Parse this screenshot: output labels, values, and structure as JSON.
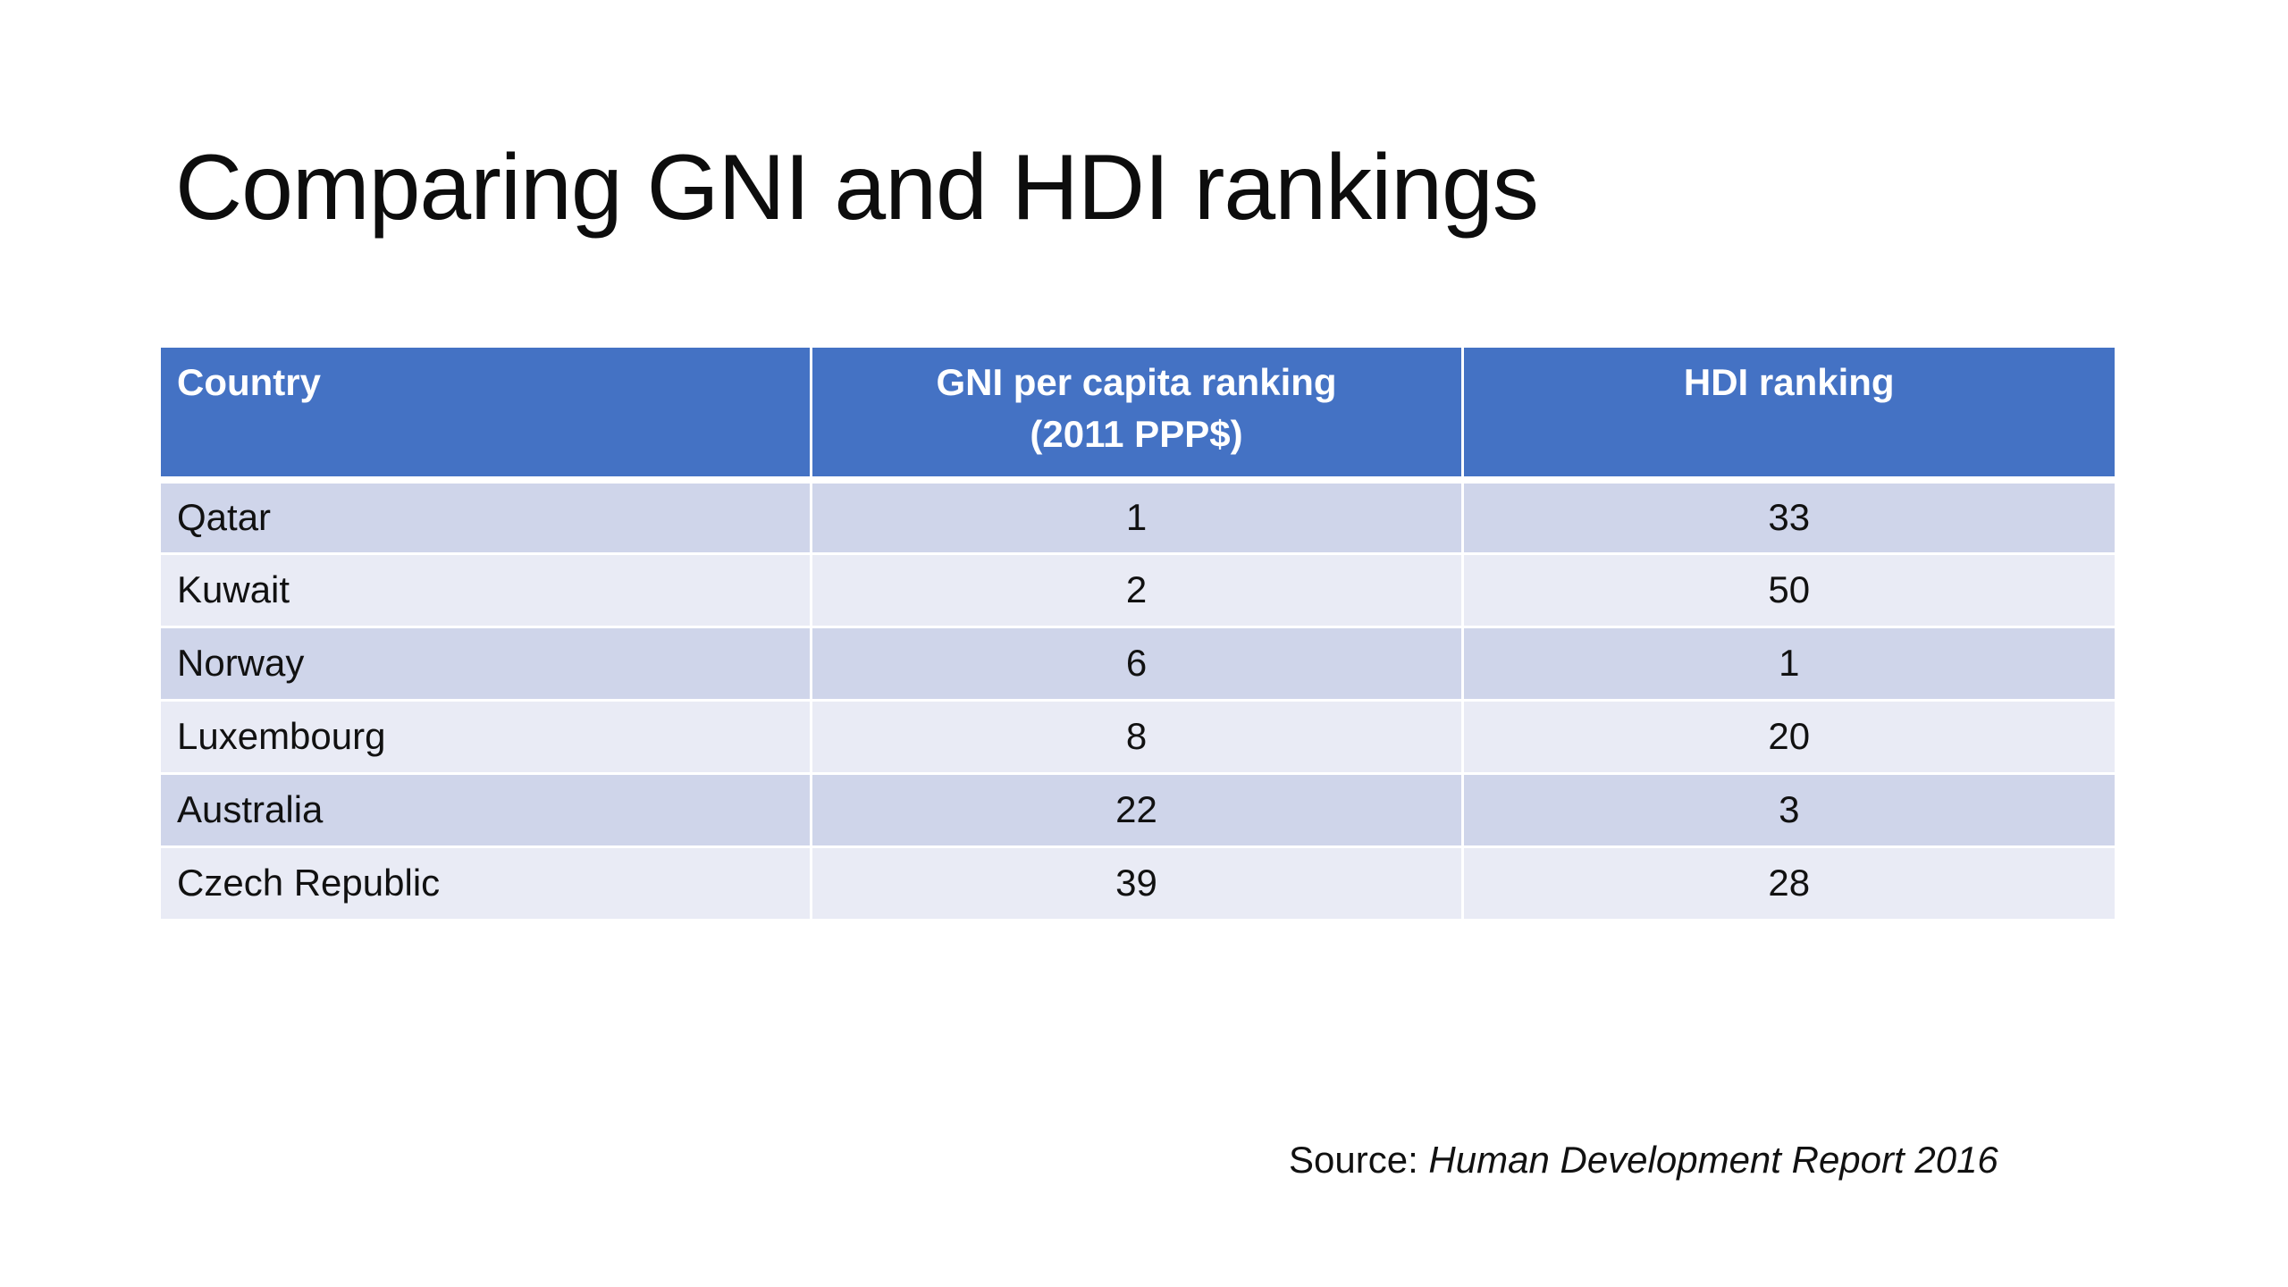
{
  "slide": {
    "title": "Comparing GNI and HDI rankings"
  },
  "table": {
    "headers": {
      "country": "Country",
      "gni_line1": "GNI per capita ranking",
      "gni_line2": "(2011 PPP$)",
      "hdi": "HDI ranking"
    },
    "rows": [
      {
        "country": "Qatar",
        "gni": "1",
        "hdi": "33"
      },
      {
        "country": "Kuwait",
        "gni": "2",
        "hdi": "50"
      },
      {
        "country": "Norway",
        "gni": "6",
        "hdi": "1"
      },
      {
        "country": "Luxembourg",
        "gni": "8",
        "hdi": "20"
      },
      {
        "country": "Australia",
        "gni": "22",
        "hdi": "3"
      },
      {
        "country": "Czech Republic",
        "gni": "39",
        "hdi": "28"
      }
    ]
  },
  "source": {
    "prefix": "Source: ",
    "title": "Human Development Report 2016"
  },
  "colors": {
    "header_bg": "#4472c4",
    "row_odd": "#cfd5ea",
    "row_even": "#e9ebf5"
  }
}
